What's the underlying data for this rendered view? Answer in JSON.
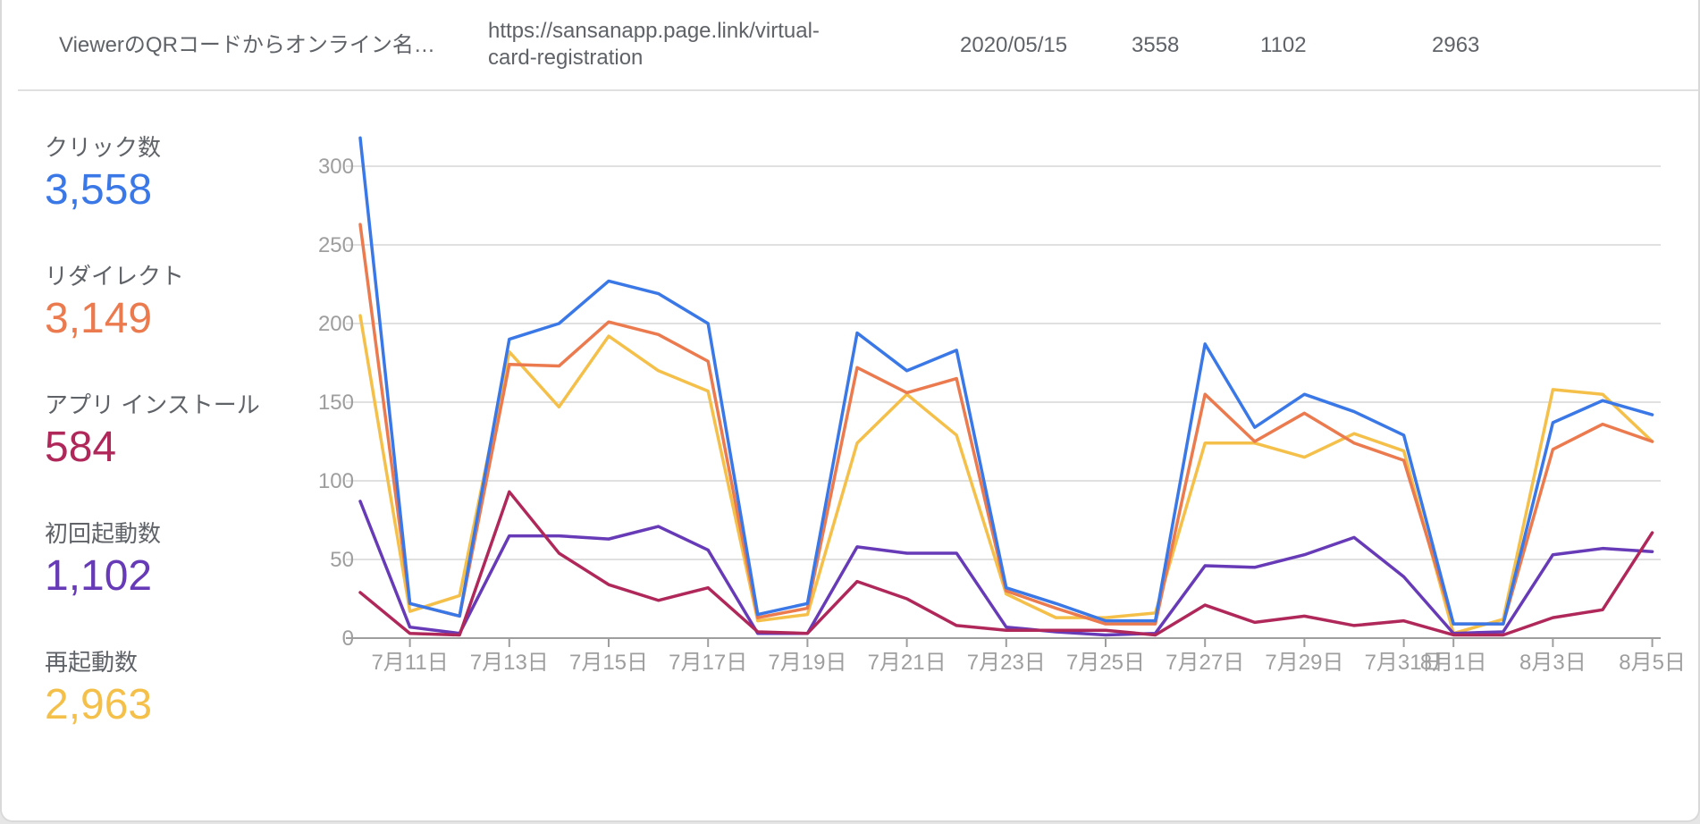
{
  "table_row": {
    "name": "ViewerのQRコードからオンライン名…",
    "link_line1": "https://sansanapp.page.link/virtual-",
    "link_line2": "card-registration",
    "date": "2020/05/15",
    "clicks": "3558",
    "first_opens": "1102",
    "re_opens": "2963"
  },
  "metrics": [
    {
      "label": "クリック数",
      "value": "3,558",
      "color": "#3b78e7"
    },
    {
      "label": "リダイレクト",
      "value": "3,149",
      "color": "#ec7a4f"
    },
    {
      "label": "アプリ インストール",
      "value": "584",
      "color": "#b0285a"
    },
    {
      "label": "初回起動数",
      "value": "1,102",
      "color": "#673ab7"
    },
    {
      "label": "再起動数",
      "value": "2,963",
      "color": "#f5c04a"
    }
  ],
  "chart_data": {
    "type": "line",
    "x": [
      "7/10",
      "7/11",
      "7/12",
      "7/13",
      "7/14",
      "7/15",
      "7/16",
      "7/17",
      "7/18",
      "7/19",
      "7/20",
      "7/21",
      "7/22",
      "7/23",
      "7/24",
      "7/25",
      "7/26",
      "7/27",
      "7/28",
      "7/29",
      "7/30",
      "7/31",
      "8/1",
      "8/2",
      "8/3",
      "8/4",
      "8/5"
    ],
    "x_tick_labels": [
      "7月11日",
      "7月13日",
      "7月15日",
      "7月17日",
      "7月19日",
      "7月21日",
      "7月23日",
      "7月25日",
      "7月27日",
      "7月29日",
      "7月31日",
      "8月1日",
      "8月3日",
      "8月5日"
    ],
    "y_ticks": [
      0,
      50,
      100,
      150,
      200,
      250,
      300
    ],
    "ylim": [
      0,
      320
    ],
    "grid": true,
    "series": [
      {
        "name": "再起動数",
        "color": "#f5c04a",
        "values": [
          205,
          17,
          27,
          182,
          147,
          192,
          170,
          157,
          11,
          15,
          124,
          155,
          129,
          28,
          13,
          13,
          16,
          124,
          124,
          115,
          130,
          119,
          3,
          12,
          158,
          155,
          125
        ]
      },
      {
        "name": "リダイレクト",
        "color": "#ec7a4f",
        "values": [
          263,
          22,
          14,
          174,
          173,
          201,
          193,
          176,
          13,
          19,
          172,
          156,
          165,
          30,
          19,
          9,
          9,
          155,
          125,
          143,
          124,
          113,
          9,
          9,
          120,
          136,
          125
        ]
      },
      {
        "name": "クリック数",
        "color": "#3b78e7",
        "values": [
          318,
          22,
          14,
          190,
          200,
          227,
          219,
          200,
          15,
          22,
          194,
          170,
          183,
          32,
          22,
          11,
          11,
          187,
          134,
          155,
          144,
          129,
          9,
          9,
          137,
          151,
          142
        ]
      },
      {
        "name": "初回起動数",
        "color": "#673ab7",
        "values": [
          87,
          7,
          3,
          65,
          65,
          63,
          71,
          56,
          3,
          3,
          58,
          54,
          54,
          7,
          4,
          2,
          3,
          46,
          45,
          53,
          64,
          39,
          3,
          4,
          53,
          57,
          55
        ]
      },
      {
        "name": "アプリ インストール",
        "color": "#b0285a",
        "values": [
          29,
          3,
          2,
          93,
          54,
          34,
          24,
          32,
          4,
          3,
          36,
          25,
          8,
          5,
          5,
          5,
          2,
          21,
          10,
          14,
          8,
          11,
          2,
          2,
          13,
          18,
          67
        ]
      }
    ]
  }
}
